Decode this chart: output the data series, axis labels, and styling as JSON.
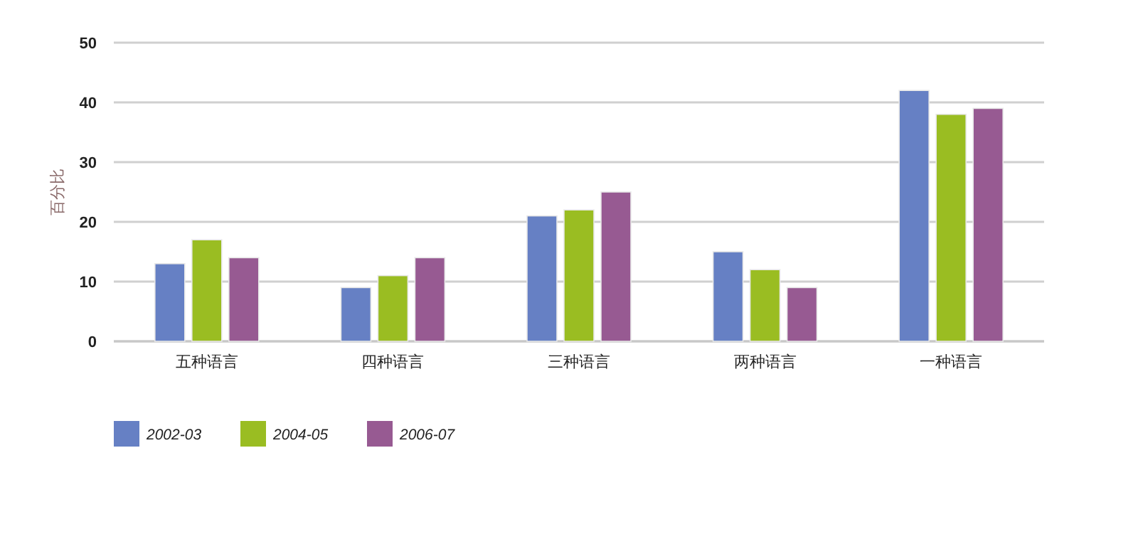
{
  "chart_data": {
    "type": "bar",
    "ylabel": "百分比",
    "categories": [
      "五种语言",
      "四种语言",
      "三种语言",
      "两种语言",
      "一种语言"
    ],
    "series": [
      {
        "name": "2002-03",
        "color": "#6680c4",
        "values": [
          13,
          9,
          21,
          15,
          42
        ]
      },
      {
        "name": "2004-05",
        "color": "#9abd22",
        "values": [
          17,
          11,
          22,
          12,
          38
        ]
      },
      {
        "name": "2006-07",
        "color": "#975a92",
        "values": [
          14,
          14,
          25,
          9,
          39
        ]
      }
    ],
    "ylim": [
      0,
      50
    ],
    "yticks": [
      0,
      10,
      20,
      30,
      40,
      50
    ],
    "grid": "y",
    "legend": "bottom"
  }
}
